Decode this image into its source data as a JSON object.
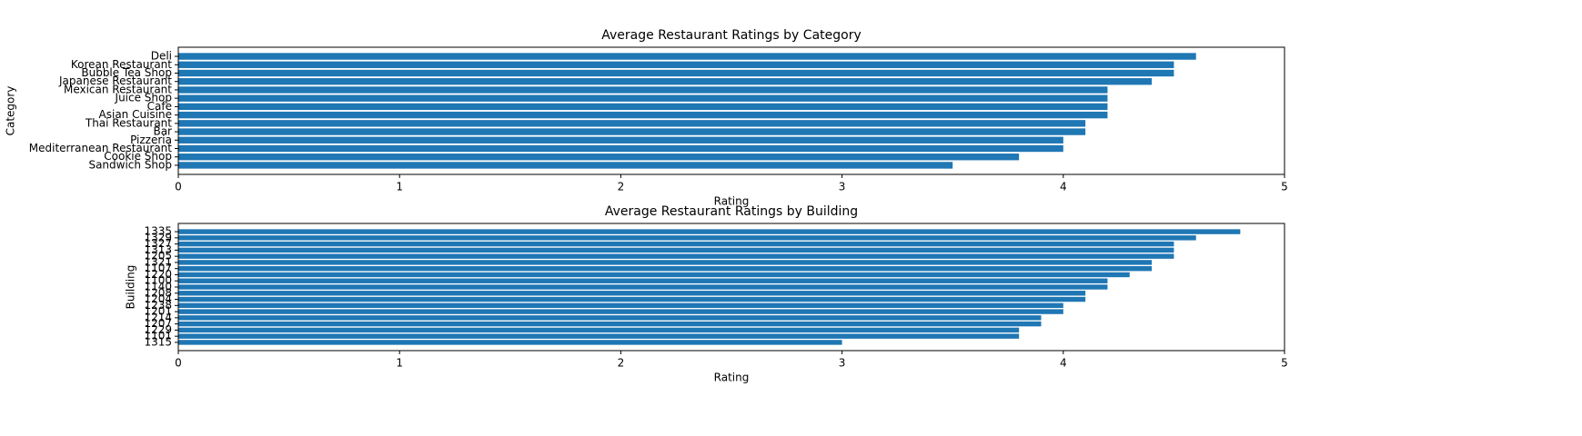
{
  "chart_data": [
    {
      "type": "barh",
      "title": "Average Restaurant Ratings by Category",
      "x_label": "Rating",
      "y_label": "Category",
      "categories": [
        "Deli",
        "Korean Restaurant",
        "Bubble Tea Shop",
        "Japanese Restaurant",
        "Mexican Restaurant",
        "Juice Shop",
        "Cafe",
        "Asian Cuisine",
        "Thai Restaurant",
        "Bar",
        "Pizzeria",
        "Mediterranean Restaurant",
        "Cookie Shop",
        "Sandwich Shop"
      ],
      "values": [
        4.6,
        4.5,
        4.5,
        4.4,
        4.2,
        4.2,
        4.2,
        4.2,
        4.1,
        4.1,
        4.0,
        4.0,
        3.8,
        3.5
      ],
      "color": "#1f77b4",
      "xlim": [
        0,
        5
      ],
      "xticks": [
        0,
        1,
        2,
        3,
        4,
        5
      ]
    },
    {
      "type": "barh",
      "title": "Average Restaurant Ratings by Building",
      "x_label": "Rating",
      "y_label": "Building",
      "categories": [
        "1335",
        "1329",
        "1327",
        "1313",
        "1205",
        "1321",
        "1107",
        "1220",
        "1100",
        "1140",
        "1208",
        "1204",
        "1238",
        "1201",
        "1214",
        "1207",
        "1229",
        "1101",
        "1315"
      ],
      "values": [
        4.8,
        4.6,
        4.5,
        4.5,
        4.5,
        4.4,
        4.4,
        4.3,
        4.2,
        4.2,
        4.1,
        4.1,
        4.0,
        4.0,
        3.9,
        3.9,
        3.8,
        3.8,
        3.0
      ],
      "color": "#1f77b4",
      "xlim": [
        0,
        5
      ],
      "xticks": [
        0,
        1,
        2,
        3,
        4,
        5
      ]
    }
  ]
}
